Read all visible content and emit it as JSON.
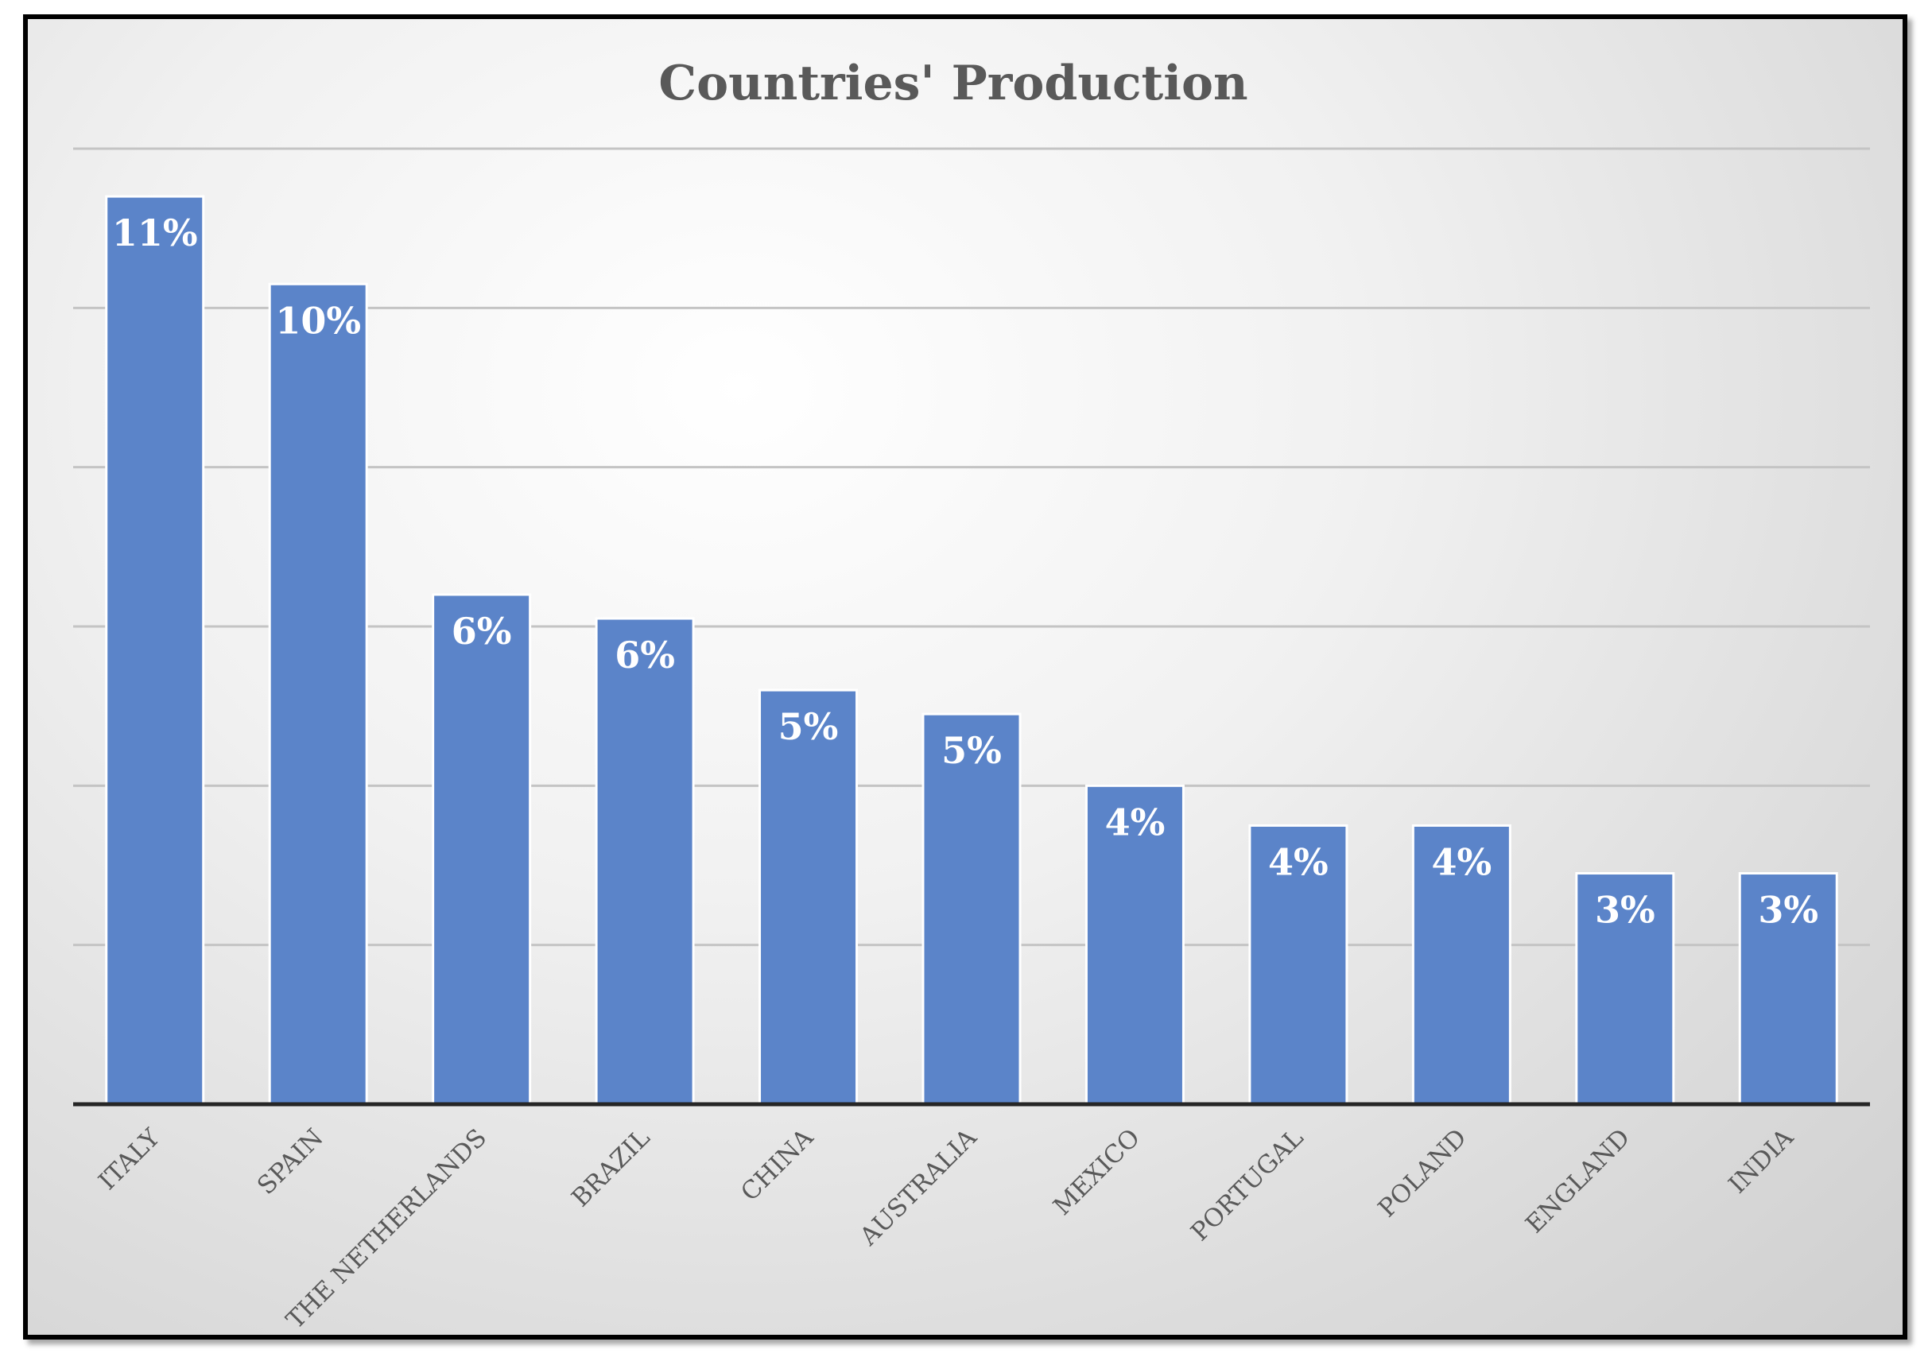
{
  "chart_data": {
    "type": "bar",
    "title": "Countries' Production",
    "xlabel": "",
    "ylabel": "",
    "categories": [
      "ITALY",
      "SPAIN",
      "THE NETHERLANDS",
      "BRAZIL",
      "CHINA",
      "AUSTRALIA",
      "MEXICO",
      "PORTUGAL",
      "POLAND",
      "ENGLAND",
      "INDIA"
    ],
    "values": [
      11.4,
      10.3,
      6.4,
      6.1,
      5.2,
      4.9,
      4.0,
      3.5,
      3.5,
      2.9,
      2.9
    ],
    "data_labels": [
      "11%",
      "10%",
      "6%",
      "6%",
      "5%",
      "5%",
      "4%",
      "4%",
      "4%",
      "3%",
      "3%"
    ],
    "ylim": [
      0,
      12
    ],
    "gridline_step": 2,
    "grid": true,
    "y_tick_labels_shown": false,
    "legend": "none",
    "bar_color": "#5b84c9",
    "title_color": "#595959"
  }
}
